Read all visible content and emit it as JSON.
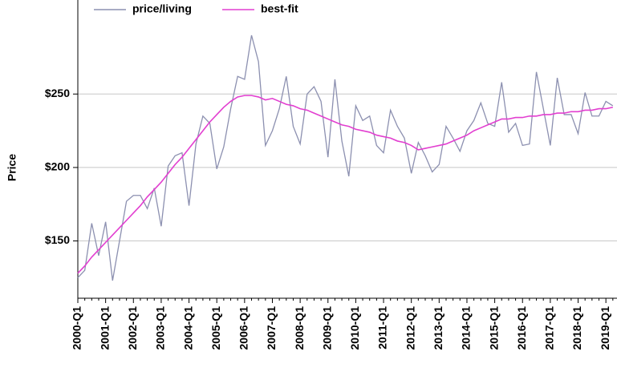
{
  "chart_data": {
    "type": "line",
    "y_label": "Price",
    "categories": [
      "2000-Q1",
      null,
      null,
      null,
      "2001-Q1",
      null,
      null,
      null,
      "2002-Q1",
      null,
      null,
      null,
      "2003-Q1",
      null,
      null,
      null,
      "2004-Q1",
      null,
      null,
      null,
      "2005-Q1",
      null,
      null,
      null,
      "2006-Q1",
      null,
      null,
      null,
      "2007-Q1",
      null,
      null,
      null,
      "2008-Q1",
      null,
      null,
      null,
      "2009-Q1",
      null,
      null,
      null,
      "2010-Q1",
      null,
      null,
      null,
      "2011-Q1",
      null,
      null,
      null,
      "2012-Q1",
      null,
      null,
      null,
      "2013-Q1",
      null,
      null,
      null,
      "2014-Q1",
      null,
      null,
      null,
      "2015-Q1",
      null,
      null,
      null,
      "2016-Q1",
      null,
      null,
      null,
      "2017-Q1",
      null,
      null,
      null,
      "2018-Q1",
      null,
      null,
      null,
      "2019-Q1",
      null
    ],
    "series": [
      {
        "name": "price/living",
        "color": "#8c90b0",
        "values": [
          125,
          130,
          162,
          140,
          163,
          123,
          150,
          177,
          181,
          181,
          172,
          186,
          160,
          201,
          208,
          210,
          174,
          216,
          235,
          230,
          199,
          214,
          240,
          262,
          260,
          290,
          272,
          215,
          225,
          240,
          262,
          228,
          216,
          250,
          255,
          245,
          207,
          260,
          218,
          194,
          242,
          232,
          235,
          215,
          210,
          239,
          228,
          220,
          196,
          217,
          208,
          197,
          202,
          228,
          220,
          211,
          225,
          232,
          244,
          230,
          228,
          258,
          224,
          230,
          215,
          216,
          265,
          240,
          215,
          261,
          236,
          236,
          223,
          251,
          235,
          235,
          245,
          242
        ]
      },
      {
        "name": "best-fit",
        "color": "#e23fd0",
        "values": [
          128,
          133,
          139,
          144,
          149,
          154,
          159,
          164,
          169,
          174,
          180,
          185,
          190,
          196,
          202,
          207,
          213,
          219,
          225,
          231,
          236,
          241,
          245,
          248,
          249,
          249,
          248,
          246,
          247,
          245,
          243,
          242,
          240,
          239,
          237,
          235,
          233,
          231,
          229,
          228,
          226,
          225,
          224,
          222,
          221,
          220,
          218,
          217,
          215,
          212,
          213,
          214,
          215,
          216,
          218,
          220,
          222,
          225,
          227,
          229,
          231,
          233,
          233,
          234,
          234,
          235,
          235,
          236,
          236,
          237,
          237,
          238,
          238,
          239,
          239,
          240,
          240,
          241
        ]
      }
    ],
    "ylim": [
      111,
      314
    ],
    "yticks": [
      {
        "value": 150,
        "label": "$150"
      },
      {
        "value": 200,
        "label": "$200"
      },
      {
        "value": 250,
        "label": "$250"
      }
    ],
    "grid": true,
    "legend": "top"
  }
}
